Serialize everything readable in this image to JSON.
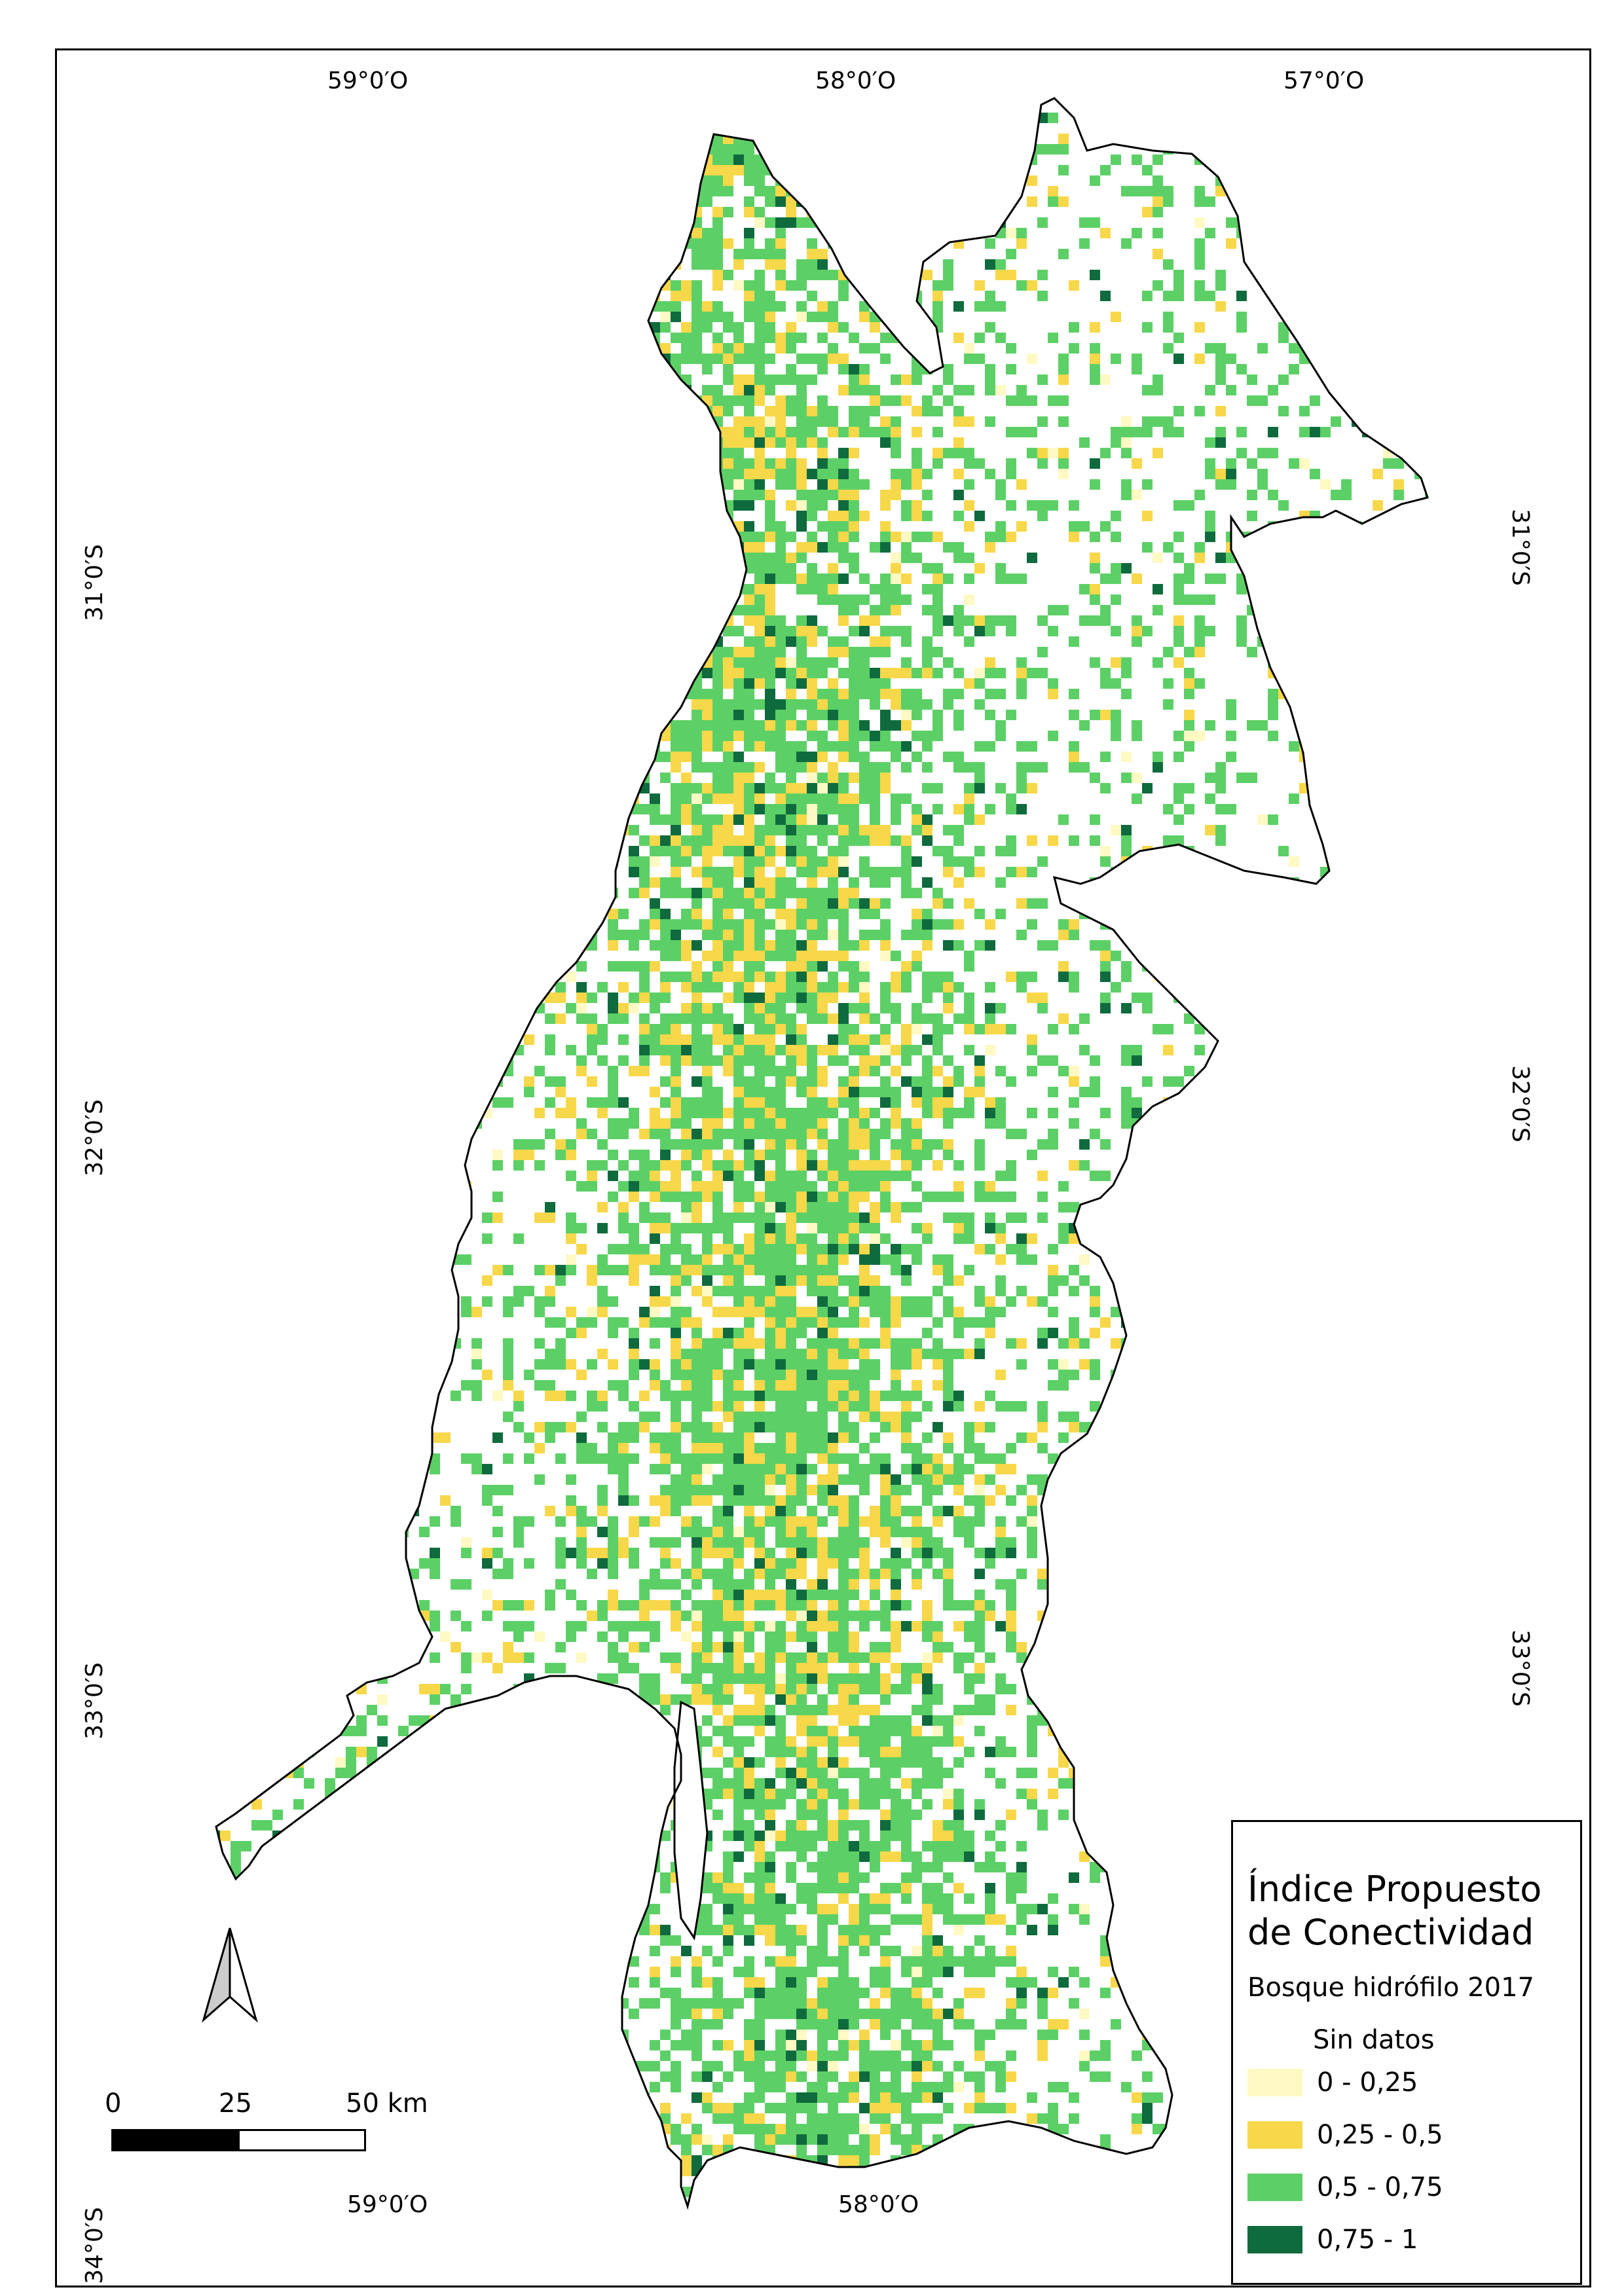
{
  "lon_labels": {
    "w59": "59°0′O",
    "w58": "58°0′O",
    "w57": "57°0′O"
  },
  "lat_labels": {
    "s31": "31°0′S",
    "s32": "32°0′S",
    "s33": "33°0′S",
    "s34": "34°0′S"
  },
  "legend": {
    "title": "Índice Propuesto de Conectividad",
    "subtitle": "Bosque hidrófilo 2017",
    "no_data": "Sin datos",
    "classes": [
      {
        "label": "0 - 0,25",
        "color": "#fff9c4"
      },
      {
        "label": "0,25 - 0,5",
        "color": "#f7d84a"
      },
      {
        "label": "0,5 - 0,75",
        "color": "#5cd066"
      },
      {
        "label": "0,75 - 1",
        "color": "#0f6b3d"
      }
    ]
  },
  "scale": {
    "tick0": "0",
    "tick1": "25",
    "tick2": "50 km"
  },
  "colors": {
    "outline": "#000000",
    "background": "#ffffff"
  }
}
